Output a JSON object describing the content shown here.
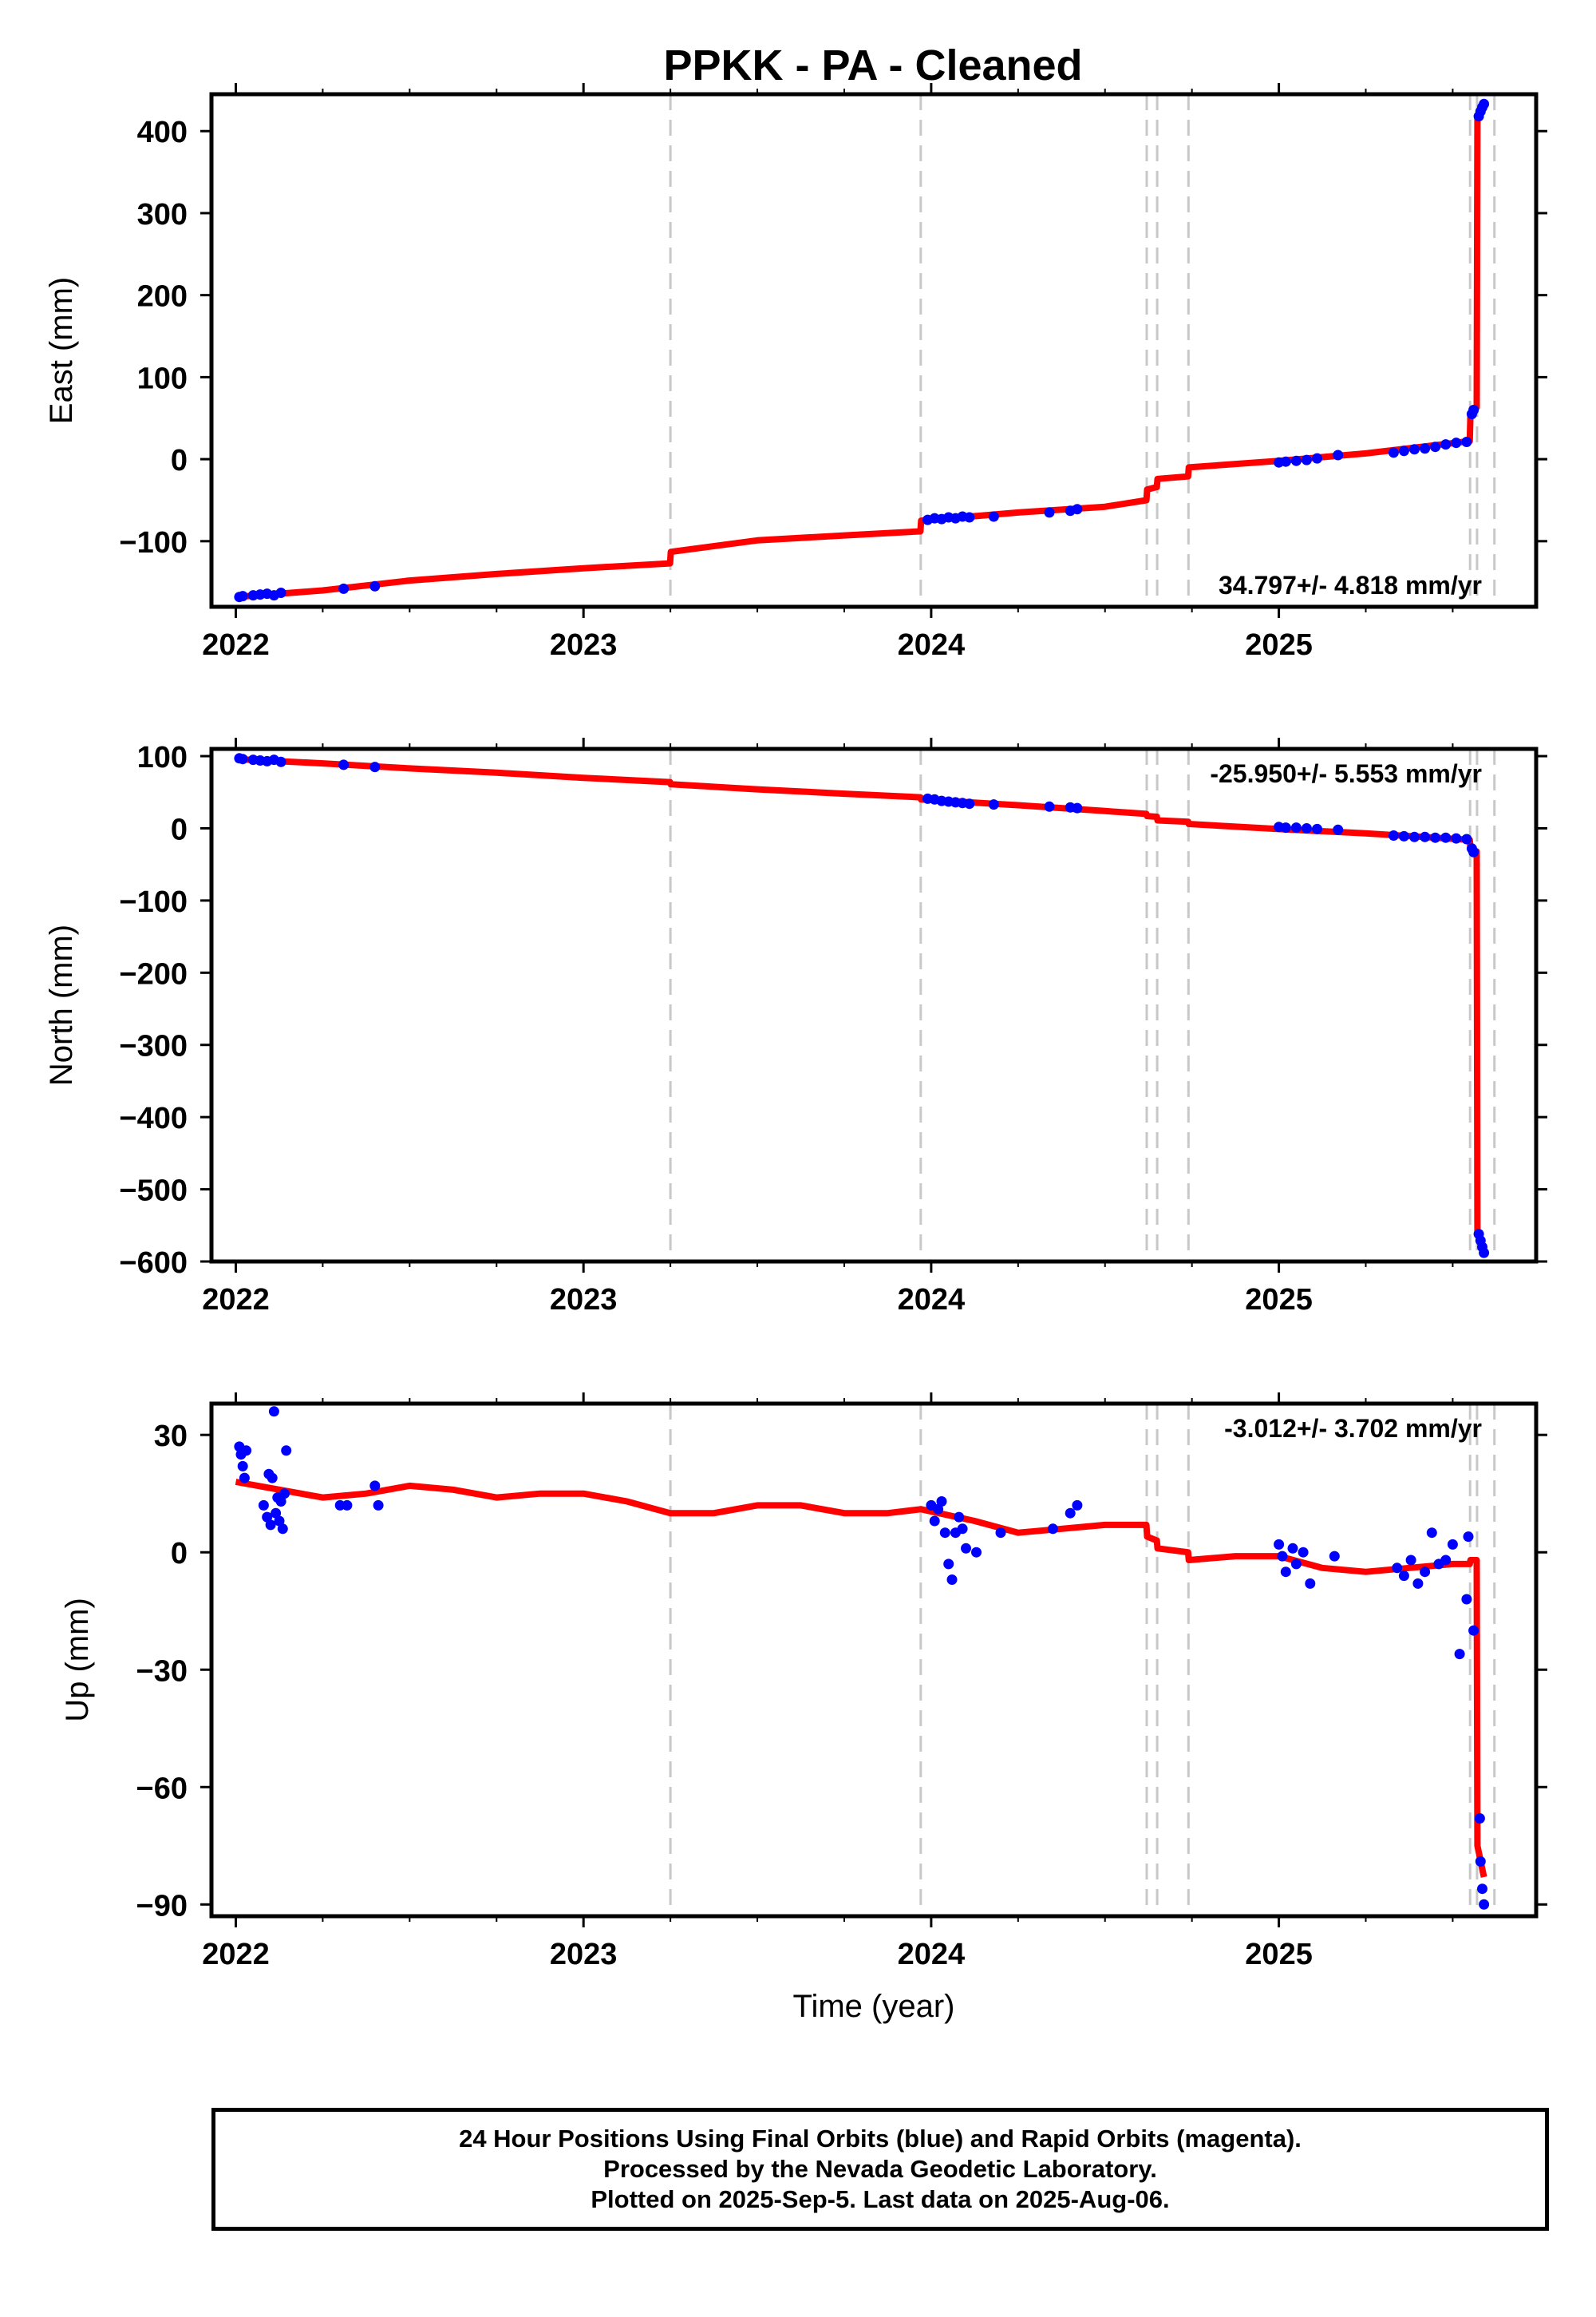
{
  "chart_title": "PPKK  - PA - Cleaned",
  "x_axis_label": "Time (year)",
  "footer": {
    "line1": "24 Hour Positions Using Final Orbits (blue) and Rapid Orbits (magenta).",
    "line2": "Processed by the Nevada Geodetic Laboratory.",
    "line3": "Plotted on 2025-Sep-5. Last data on 2025-Aug-06."
  },
  "colors": {
    "final_orbits": "#0000ff",
    "model": "#ff0000",
    "breaks": "#c8c8c8",
    "frame": "#000000"
  },
  "chart_data": [
    {
      "type": "scatter",
      "panel": "east",
      "ylabel": "East (mm)",
      "xlim": [
        2021.93,
        2025.74
      ],
      "ylim": [
        -180,
        445
      ],
      "x_ticks": [
        2022,
        2023,
        2024,
        2025
      ],
      "y_ticks": [
        400,
        300,
        200,
        100,
        0,
        -100
      ],
      "rate_label": "34.797+/- 4.818 mm/yr",
      "rate_position": "bottom-right",
      "breaks": [
        2023.25,
        2023.97,
        2024.62,
        2024.65,
        2024.74,
        2025.55,
        2025.57,
        2025.62
      ],
      "model": {
        "x": [
          2022.0,
          2022.25,
          2022.5,
          2022.75,
          2023.0,
          2023.249,
          2023.251,
          2023.5,
          2023.75,
          2023.969,
          2023.971,
          2024.25,
          2024.5,
          2024.619,
          2024.621,
          2024.649,
          2024.651,
          2024.739,
          2024.741,
          2025.0,
          2025.25,
          2025.45,
          2025.549,
          2025.551,
          2025.569,
          2025.571,
          2025.59
        ],
        "y": [
          -168,
          -160,
          -148,
          -140,
          -133,
          -127,
          -113,
          -99,
          -93,
          -88,
          -75,
          -65,
          -58,
          -50,
          -37,
          -34,
          -24,
          -21,
          -10,
          -2,
          7,
          17,
          22,
          56,
          63,
          415,
          432
        ]
      },
      "points": {
        "x": [
          2022.01,
          2022.02,
          2022.05,
          2022.07,
          2022.09,
          2022.11,
          2022.13,
          2022.31,
          2022.4,
          2023.99,
          2024.01,
          2024.03,
          2024.05,
          2024.07,
          2024.09,
          2024.11,
          2024.18,
          2024.34,
          2024.4,
          2024.42,
          2025.0,
          2025.02,
          2025.05,
          2025.08,
          2025.11,
          2025.17,
          2025.33,
          2025.36,
          2025.39,
          2025.42,
          2025.45,
          2025.48,
          2025.51,
          2025.54,
          2025.555,
          2025.56,
          2025.575,
          2025.58,
          2025.585,
          2025.59
        ],
        "y": [
          -168,
          -167,
          -166,
          -165,
          -164,
          -166,
          -163,
          -158,
          -155,
          -74,
          -72,
          -73,
          -71,
          -72,
          -70,
          -71,
          -70,
          -65,
          -63,
          -61,
          -4,
          -3,
          -2,
          -1,
          1,
          5,
          8,
          10,
          12,
          13,
          15,
          18,
          20,
          21,
          55,
          60,
          418,
          424,
          429,
          433
        ]
      }
    },
    {
      "type": "scatter",
      "panel": "north",
      "ylabel": "North (mm)",
      "xlim": [
        2021.93,
        2025.74
      ],
      "ylim": [
        -600,
        110
      ],
      "x_ticks": [
        2022,
        2023,
        2024,
        2025
      ],
      "y_ticks": [
        100,
        0,
        -100,
        -200,
        -300,
        -400,
        -500,
        -600
      ],
      "rate_label": "-25.950+/- 5.553 mm/yr",
      "rate_position": "top-right",
      "breaks": [
        2023.25,
        2023.97,
        2024.62,
        2024.65,
        2024.74,
        2025.55,
        2025.57,
        2025.62
      ],
      "model": {
        "x": [
          2022.0,
          2022.25,
          2022.5,
          2022.75,
          2023.0,
          2023.249,
          2023.251,
          2023.5,
          2023.75,
          2023.969,
          2023.971,
          2024.25,
          2024.5,
          2024.619,
          2024.621,
          2024.649,
          2024.651,
          2024.739,
          2024.741,
          2025.0,
          2025.25,
          2025.45,
          2025.549,
          2025.551,
          2025.569,
          2025.571,
          2025.59
        ],
        "y": [
          96,
          90,
          83,
          77,
          70,
          64,
          61,
          54,
          48,
          43,
          40,
          32,
          24,
          20,
          17,
          16,
          11,
          9,
          6,
          -1,
          -7,
          -13,
          -16,
          -28,
          -32,
          -560,
          -585
        ]
      },
      "points": {
        "x": [
          2022.01,
          2022.02,
          2022.05,
          2022.07,
          2022.09,
          2022.11,
          2022.13,
          2022.31,
          2022.4,
          2023.99,
          2024.01,
          2024.03,
          2024.05,
          2024.07,
          2024.09,
          2024.11,
          2024.18,
          2024.34,
          2024.4,
          2024.42,
          2025.0,
          2025.02,
          2025.05,
          2025.08,
          2025.11,
          2025.17,
          2025.33,
          2025.36,
          2025.39,
          2025.42,
          2025.45,
          2025.48,
          2025.51,
          2025.54,
          2025.555,
          2025.56,
          2025.575,
          2025.58,
          2025.585,
          2025.59
        ],
        "y": [
          97,
          96,
          95,
          94,
          93,
          95,
          92,
          88,
          85,
          41,
          40,
          38,
          37,
          36,
          35,
          34,
          33,
          30,
          29,
          28,
          2,
          1,
          1,
          0,
          -1,
          -2,
          -10,
          -11,
          -12,
          -12,
          -13,
          -13,
          -14,
          -15,
          -28,
          -33,
          -562,
          -571,
          -580,
          -588
        ]
      }
    },
    {
      "type": "scatter",
      "panel": "up",
      "ylabel": "Up (mm)",
      "xlabel": "Time (year)",
      "xlim": [
        2021.93,
        2025.74
      ],
      "ylim": [
        -93,
        38
      ],
      "x_ticks": [
        2022,
        2023,
        2024,
        2025
      ],
      "y_ticks": [
        30,
        0,
        -30,
        -60,
        -90
      ],
      "rate_label": "-3.012+/- 3.702 mm/yr",
      "rate_position": "top-right",
      "breaks": [
        2023.25,
        2023.97,
        2024.62,
        2024.65,
        2024.74,
        2025.55,
        2025.57,
        2025.62
      ],
      "model": {
        "x": [
          2022.0,
          2022.125,
          2022.25,
          2022.375,
          2022.5,
          2022.625,
          2022.75,
          2022.875,
          2023.0,
          2023.125,
          2023.249,
          2023.251,
          2023.375,
          2023.5,
          2023.625,
          2023.75,
          2023.875,
          2023.969,
          2023.971,
          2024.125,
          2024.25,
          2024.375,
          2024.5,
          2024.619,
          2024.621,
          2024.649,
          2024.651,
          2024.739,
          2024.741,
          2024.875,
          2025.0,
          2025.125,
          2025.25,
          2025.375,
          2025.5,
          2025.549,
          2025.551,
          2025.569,
          2025.571,
          2025.59
        ],
        "y": [
          18,
          16,
          14,
          15,
          17,
          16,
          14,
          15,
          15,
          13,
          10,
          10,
          10,
          12,
          12,
          10,
          10,
          11,
          11,
          8,
          5,
          6,
          7,
          7,
          4,
          3,
          1,
          0,
          -2,
          -1,
          -1,
          -4,
          -5,
          -4,
          -3,
          -3,
          -2,
          -2,
          -75,
          -83
        ]
      },
      "points": {
        "x": [
          2022.01,
          2022.015,
          2022.02,
          2022.025,
          2022.03,
          2022.08,
          2022.09,
          2022.095,
          2022.1,
          2022.105,
          2022.11,
          2022.115,
          2022.12,
          2022.125,
          2022.13,
          2022.135,
          2022.14,
          2022.145,
          2022.3,
          2022.32,
          2022.4,
          2022.41,
          2024.0,
          2024.01,
          2024.02,
          2024.03,
          2024.04,
          2024.05,
          2024.06,
          2024.07,
          2024.08,
          2024.09,
          2024.1,
          2024.13,
          2024.2,
          2024.35,
          2024.4,
          2024.42,
          2025.0,
          2025.01,
          2025.02,
          2025.04,
          2025.05,
          2025.07,
          2025.09,
          2025.16,
          2025.34,
          2025.36,
          2025.38,
          2025.4,
          2025.42,
          2025.44,
          2025.46,
          2025.48,
          2025.5,
          2025.52,
          2025.54,
          2025.545,
          2025.56,
          2025.578,
          2025.58,
          2025.585,
          2025.59
        ],
        "y": [
          27,
          25,
          22,
          19,
          26,
          12,
          9,
          20,
          7,
          19,
          36,
          10,
          14,
          8,
          13,
          6,
          15,
          26,
          12,
          12,
          17,
          12,
          12,
          8,
          11,
          13,
          5,
          -3,
          -7,
          5,
          9,
          6,
          1,
          0,
          5,
          6,
          10,
          12,
          2,
          -1,
          -5,
          1,
          -3,
          0,
          -8,
          -1,
          -4,
          -6,
          -2,
          -8,
          -5,
          5,
          -3,
          -2,
          2,
          -26,
          -12,
          4,
          -20,
          -68,
          -79,
          -86,
          -90
        ]
      }
    }
  ]
}
